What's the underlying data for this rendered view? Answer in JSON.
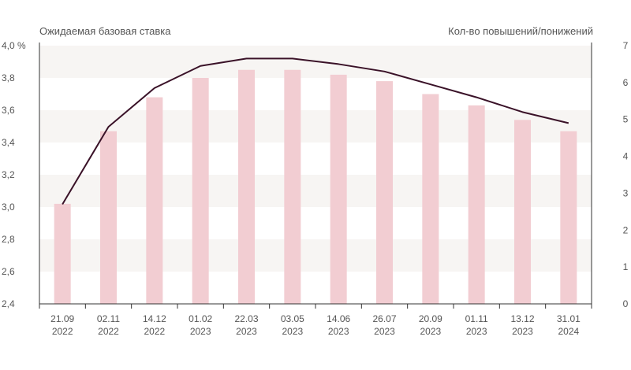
{
  "chart_data": {
    "type": "bar+line",
    "left_axis": {
      "title": "Ожидаемая базовая ставка",
      "min": 2.4,
      "max": 4.0,
      "ticks": [
        "2,4",
        "2,6",
        "2,8",
        "3,0",
        "3,2",
        "3,4",
        "3,6",
        "3,8",
        "4,0 %"
      ]
    },
    "right_axis": {
      "title": "Кол-во повышений/понижений",
      "min": 0,
      "max": 7,
      "ticks": [
        "0",
        "1",
        "2",
        "3",
        "4",
        "5",
        "6",
        "7"
      ]
    },
    "categories": [
      [
        "21.09",
        "2022"
      ],
      [
        "02.11",
        "2022"
      ],
      [
        "14.12",
        "2022"
      ],
      [
        "01.02",
        "2023"
      ],
      [
        "22.03",
        "2023"
      ],
      [
        "03.05",
        "2023"
      ],
      [
        "14.06",
        "2023"
      ],
      [
        "26.07",
        "2023"
      ],
      [
        "20.09",
        "2023"
      ],
      [
        "01.11",
        "2023"
      ],
      [
        "13.12",
        "2023"
      ],
      [
        "31.01",
        "2024"
      ]
    ],
    "bars": [
      3.02,
      3.47,
      3.68,
      3.8,
      3.85,
      3.85,
      3.82,
      3.78,
      3.7,
      3.63,
      3.54,
      3.47
    ],
    "line": [
      2.7,
      4.8,
      5.85,
      6.45,
      6.65,
      6.65,
      6.5,
      6.3,
      5.95,
      5.6,
      5.2,
      4.9
    ],
    "grid": "alternating bands",
    "colors": {
      "bar": "#f2cdd2",
      "line": "#3a1228",
      "band": "#f7f5f3",
      "axis": "#333333",
      "text": "#555555"
    }
  }
}
